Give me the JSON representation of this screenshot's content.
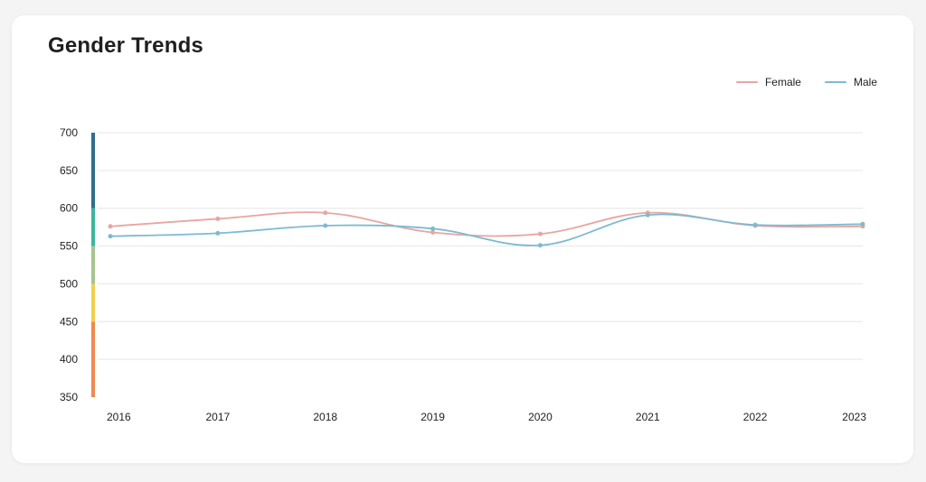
{
  "card": {
    "title": "Gender Trends"
  },
  "chart_data": {
    "type": "line",
    "title": "Gender Trends",
    "x": [
      "2016",
      "2017",
      "2018",
      "2019",
      "2020",
      "2021",
      "2022",
      "2023"
    ],
    "series": [
      {
        "name": "Female",
        "color": "#e8a6a1",
        "values": [
          576,
          586,
          594,
          568,
          566,
          594,
          577,
          576
        ]
      },
      {
        "name": "Male",
        "color": "#7dbad2",
        "values": [
          563,
          567,
          577,
          573,
          551,
          591,
          578,
          579
        ]
      }
    ],
    "yticks": [
      350,
      400,
      450,
      500,
      550,
      600,
      650,
      700
    ],
    "ylim": [
      350,
      700
    ],
    "grid": true,
    "legend_position": "top-right",
    "color_scale": [
      {
        "from": 350,
        "to": 450,
        "color": "#ee8a4f"
      },
      {
        "from": 450,
        "to": 500,
        "color": "#f2cf4d"
      },
      {
        "from": 500,
        "to": 550,
        "color": "#a7c48f"
      },
      {
        "from": 550,
        "to": 600,
        "color": "#3fb59b"
      },
      {
        "from": 600,
        "to": 700,
        "color": "#2e6e8e"
      }
    ]
  }
}
